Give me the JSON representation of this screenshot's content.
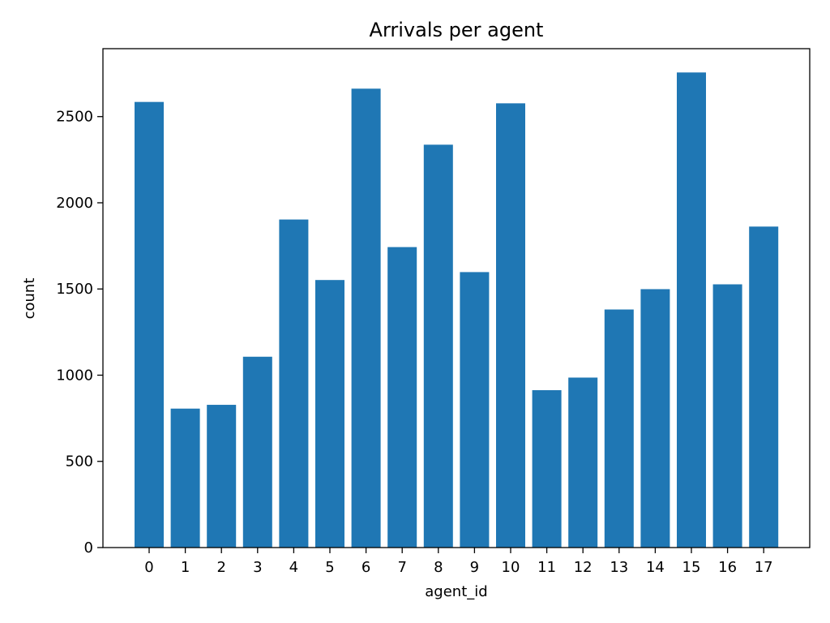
{
  "chart_data": {
    "type": "bar",
    "title": "Arrivals per agent",
    "xlabel": "agent_id",
    "ylabel": "count",
    "categories": [
      "0",
      "1",
      "2",
      "3",
      "4",
      "5",
      "6",
      "7",
      "8",
      "9",
      "10",
      "11",
      "12",
      "13",
      "14",
      "15",
      "16",
      "17"
    ],
    "values": [
      2585,
      806,
      828,
      1107,
      1903,
      1552,
      2662,
      1743,
      2337,
      1598,
      2577,
      913,
      986,
      1381,
      1499,
      2756,
      1527,
      1862
    ],
    "yticks": [
      0,
      500,
      1000,
      1500,
      2000,
      2500
    ],
    "ylim": [
      0,
      2894
    ],
    "bar_color": "#1f77b4",
    "grid": false,
    "legend": "none"
  }
}
